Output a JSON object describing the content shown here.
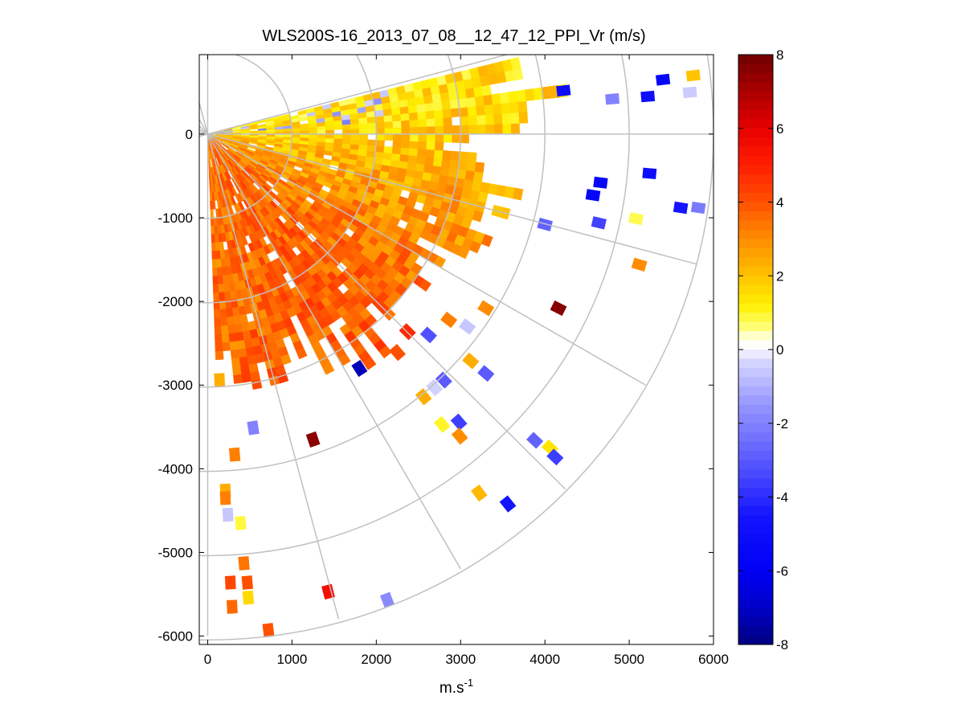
{
  "chart_data": {
    "type": "heatmap",
    "subtype": "ppi-polar-sector",
    "title": "WLS200S-16_2013_07_08__12_47_12_PPI_Vr (m/s)",
    "xlabel": "m.s",
    "xlabel_superscript": "-1",
    "ylabel": "",
    "xlim": [
      -100,
      6000
    ],
    "ylim": [
      -6100,
      950
    ],
    "x_ticks": [
      0,
      1000,
      2000,
      3000,
      4000,
      5000,
      6000
    ],
    "x_tick_labels": [
      "0",
      "1000",
      "2000",
      "3000",
      "4000",
      "5000",
      "6000"
    ],
    "y_ticks": [
      0,
      -1000,
      -2000,
      -3000,
      -4000,
      -5000,
      -6000
    ],
    "y_tick_labels": [
      "0",
      "-1000",
      "-2000",
      "-3000",
      "-4000",
      "-5000",
      "-6000"
    ],
    "polar_grid": {
      "range_rings_m": [
        1000,
        2000,
        3000,
        4000,
        5000,
        6000
      ],
      "radial_lines_deg": [
        15,
        0,
        -15,
        -30,
        -45,
        -60,
        -75,
        -90
      ]
    },
    "colorbar": {
      "clim": [
        -8,
        8
      ],
      "ticks": [
        8,
        6,
        4,
        2,
        0,
        -2,
        -4,
        -6,
        -8
      ],
      "tick_labels": [
        "8",
        "6",
        "4",
        "2",
        "0",
        "-2",
        "-4",
        "-6",
        "-8"
      ],
      "colors": [
        "#000080",
        "#0000d0",
        "#2020ff",
        "#6060ff",
        "#a0a0ff",
        "#e8e8ff",
        "#ffffff",
        "#ffff40",
        "#ffd000",
        "#ff9000",
        "#ff4000",
        "#ff0000",
        "#b00000",
        "#700000"
      ]
    },
    "dense_field": {
      "description": "Contiguous region of mostly positive radial velocity",
      "azimuth_deg": [
        -88,
        14
      ],
      "range_m": [
        0,
        4000
      ],
      "velocity_near_azimuth_m_s": [
        [
          14,
          1.2
        ],
        [
          0,
          1.5
        ],
        [
          -15,
          2.3
        ],
        [
          -30,
          3.0
        ],
        [
          -45,
          3.5
        ],
        [
          -60,
          3.6
        ],
        [
          -75,
          3.4
        ],
        [
          -88,
          3.3
        ]
      ],
      "max_range_by_azimuth_m": [
        [
          14,
          3600
        ],
        [
          5,
          4100
        ],
        [
          0,
          4000
        ],
        [
          -3,
          3000
        ],
        [
          -10,
          3500
        ],
        [
          -20,
          3400
        ],
        [
          -30,
          3000
        ],
        [
          -40,
          2700
        ],
        [
          -50,
          3100
        ],
        [
          -60,
          3000
        ],
        [
          -70,
          2700
        ],
        [
          -80,
          2900
        ],
        [
          -88,
          2600
        ]
      ]
    },
    "scattered_points": [
      {
        "x": 5760,
        "y": 700,
        "v": 2.0
      },
      {
        "x": 5400,
        "y": 650,
        "v": -5.5
      },
      {
        "x": 5220,
        "y": 450,
        "v": -5.0
      },
      {
        "x": 5720,
        "y": 500,
        "v": -0.5
      },
      {
        "x": 4800,
        "y": 420,
        "v": -2.0
      },
      {
        "x": 4220,
        "y": 520,
        "v": -5.0
      },
      {
        "x": 4660,
        "y": -580,
        "v": -5.5
      },
      {
        "x": 4570,
        "y": -730,
        "v": -5.5
      },
      {
        "x": 5240,
        "y": -470,
        "v": -5.0
      },
      {
        "x": 5820,
        "y": -880,
        "v": -2.2
      },
      {
        "x": 5610,
        "y": -880,
        "v": -4.5
      },
      {
        "x": 4640,
        "y": -1060,
        "v": -3.5
      },
      {
        "x": 4000,
        "y": -1080,
        "v": -2.8
      },
      {
        "x": 5080,
        "y": -1010,
        "v": 0.8
      },
      {
        "x": 5120,
        "y": -1560,
        "v": 3.0
      },
      {
        "x": 4160,
        "y": -2080,
        "v": 7.6
      },
      {
        "x": 3300,
        "y": -2080,
        "v": 3.0
      },
      {
        "x": 3080,
        "y": -2300,
        "v": -0.6
      },
      {
        "x": 2860,
        "y": -2220,
        "v": 3.2
      },
      {
        "x": 2620,
        "y": -2400,
        "v": -3.2
      },
      {
        "x": 2370,
        "y": -2360,
        "v": 4.8
      },
      {
        "x": 2250,
        "y": -2610,
        "v": 4.0
      },
      {
        "x": 1800,
        "y": -2800,
        "v": -7.2
      },
      {
        "x": 3300,
        "y": -2860,
        "v": -3.0
      },
      {
        "x": 3120,
        "y": -2710,
        "v": 2.4
      },
      {
        "x": 2800,
        "y": -2940,
        "v": -3.0
      },
      {
        "x": 2690,
        "y": -3030,
        "v": -0.4
      },
      {
        "x": 2560,
        "y": -3140,
        "v": 2.4
      },
      {
        "x": 2780,
        "y": -3470,
        "v": 1.0
      },
      {
        "x": 2980,
        "y": -3440,
        "v": -3.6
      },
      {
        "x": 2990,
        "y": -3610,
        "v": 3.0
      },
      {
        "x": 3880,
        "y": -3660,
        "v": -2.8
      },
      {
        "x": 4060,
        "y": -3750,
        "v": 1.4
      },
      {
        "x": 4120,
        "y": -3860,
        "v": -3.6
      },
      {
        "x": 3220,
        "y": -4290,
        "v": 2.2
      },
      {
        "x": 3560,
        "y": -4420,
        "v": -4.6
      },
      {
        "x": 1250,
        "y": -3650,
        "v": 7.5
      },
      {
        "x": 540,
        "y": -3510,
        "v": -2.0
      },
      {
        "x": 320,
        "y": -3830,
        "v": 3.2
      },
      {
        "x": 210,
        "y": -4260,
        "v": 2.4
      },
      {
        "x": 210,
        "y": -4350,
        "v": 3.2
      },
      {
        "x": 240,
        "y": -4550,
        "v": -0.6
      },
      {
        "x": 390,
        "y": -4650,
        "v": 0.9
      },
      {
        "x": 430,
        "y": -5130,
        "v": 3.4
      },
      {
        "x": 470,
        "y": -5360,
        "v": 4.0
      },
      {
        "x": 270,
        "y": -5360,
        "v": 4.2
      },
      {
        "x": 480,
        "y": -5540,
        "v": 1.6
      },
      {
        "x": 290,
        "y": -5650,
        "v": 3.6
      },
      {
        "x": 720,
        "y": -5930,
        "v": 4.0
      },
      {
        "x": 1430,
        "y": -5470,
        "v": 5.5
      },
      {
        "x": 2130,
        "y": -5570,
        "v": -1.8
      },
      {
        "x": 140,
        "y": -2940,
        "v": 2.4
      }
    ]
  }
}
